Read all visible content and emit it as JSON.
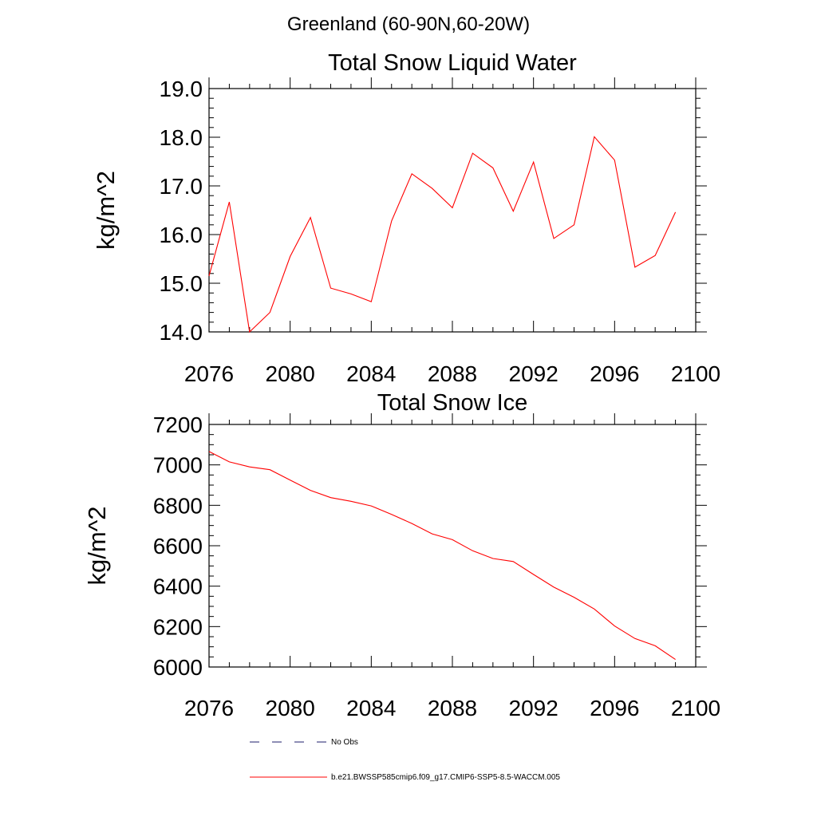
{
  "figure": {
    "title": "Greenland (60-90N,60-20W)"
  },
  "colors": {
    "model_line": "#ff0000",
    "obs_line": "#1c1c6b",
    "axis": "#000000"
  },
  "legend": {
    "items": [
      {
        "label": "No Obs",
        "style": "dashed",
        "color": "#1c1c6b"
      },
      {
        "label": "b.e21.BWSSP585cmip6.f09_g17.CMIP6-SSP5-8.5-WACCM.005",
        "style": "solid",
        "color": "#ff0000"
      }
    ]
  },
  "chart_data": [
    {
      "type": "line",
      "title": "Total Snow Liquid Water",
      "xlabel": "",
      "ylabel": "kg/m^2",
      "xlim": [
        2076,
        2100
      ],
      "ylim": [
        14.0,
        19.0
      ],
      "xticks": [
        "2076",
        "2080",
        "2084",
        "2088",
        "2092",
        "2096",
        "2100"
      ],
      "yticks": [
        "14.0",
        "15.0",
        "16.0",
        "17.0",
        "18.0",
        "19.0"
      ],
      "grid": false,
      "x": [
        2076,
        2077,
        2078,
        2079,
        2080,
        2081,
        2082,
        2083,
        2084,
        2085,
        2086,
        2087,
        2088,
        2089,
        2090,
        2091,
        2092,
        2093,
        2094,
        2095,
        2096,
        2097,
        2098,
        2099
      ],
      "series": [
        {
          "values": [
            15.15,
            16.67,
            14.0,
            14.4,
            15.55,
            16.35,
            14.9,
            14.78,
            14.62,
            16.28,
            17.25,
            16.95,
            16.55,
            17.67,
            17.37,
            16.48,
            17.49,
            15.92,
            16.2,
            18.01,
            17.53,
            15.33,
            15.57,
            16.46
          ]
        }
      ]
    },
    {
      "type": "line",
      "title": "Total Snow Ice",
      "xlabel": "",
      "ylabel": "kg/m^2",
      "xlim": [
        2076,
        2100
      ],
      "ylim": [
        6000,
        7200
      ],
      "xticks": [
        "2076",
        "2080",
        "2084",
        "2088",
        "2092",
        "2096",
        "2100"
      ],
      "yticks": [
        "6000",
        "6200",
        "6400",
        "6600",
        "6800",
        "7000",
        "7200"
      ],
      "grid": false,
      "x": [
        2076,
        2077,
        2078,
        2079,
        2080,
        2081,
        2082,
        2083,
        2084,
        2085,
        2086,
        2087,
        2088,
        2089,
        2090,
        2091,
        2092,
        2093,
        2094,
        2095,
        2096,
        2097,
        2098,
        2099
      ],
      "series": [
        {
          "values": [
            7066,
            7015,
            6990,
            6976,
            6925,
            6874,
            6838,
            6820,
            6797,
            6755,
            6710,
            6659,
            6630,
            6575,
            6537,
            6522,
            6458,
            6395,
            6345,
            6287,
            6203,
            6141,
            6105,
            6037
          ]
        }
      ]
    }
  ]
}
